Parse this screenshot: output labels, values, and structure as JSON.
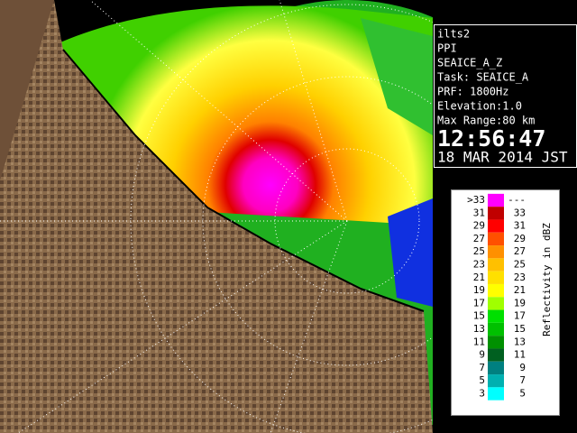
{
  "info": {
    "lines": [
      "ilts2",
      "PPI",
      "SEAICE_A_Z",
      "Task: SEAICE_A",
      "PRF: 1800Hz",
      "Elevation:1.0",
      "Max Range:80 km"
    ],
    "time": "12:56:47",
    "date": "18 MAR 2014 JST"
  },
  "legend": {
    "title": "Reflectivity in dBZ",
    "rows": [
      {
        "left": ">33",
        "right": "---",
        "color": "#ff00ff"
      },
      {
        "left": "31",
        "right": "33",
        "color": "#c00000"
      },
      {
        "left": "29",
        "right": "31",
        "color": "#ff0000"
      },
      {
        "left": "27",
        "right": "29",
        "color": "#ff5000"
      },
      {
        "left": "25",
        "right": "27",
        "color": "#ff9000"
      },
      {
        "left": "23",
        "right": "25",
        "color": "#ffc000"
      },
      {
        "left": "21",
        "right": "23",
        "color": "#ffe000"
      },
      {
        "left": "19",
        "right": "21",
        "color": "#ffff00"
      },
      {
        "left": "17",
        "right": "19",
        "color": "#a0ff00"
      },
      {
        "left": "15",
        "right": "17",
        "color": "#00e000"
      },
      {
        "left": "13",
        "right": "15",
        "color": "#00c000"
      },
      {
        "left": "11",
        "right": "13",
        "color": "#009000"
      },
      {
        "left": "9",
        "right": "11",
        "color": "#006020"
      },
      {
        "left": "7",
        "right": "9",
        "color": "#008080"
      },
      {
        "left": "5",
        "right": "7",
        "color": "#00b0b0"
      },
      {
        "left": "3",
        "right": "5",
        "color": "#00ffff"
      }
    ]
  }
}
